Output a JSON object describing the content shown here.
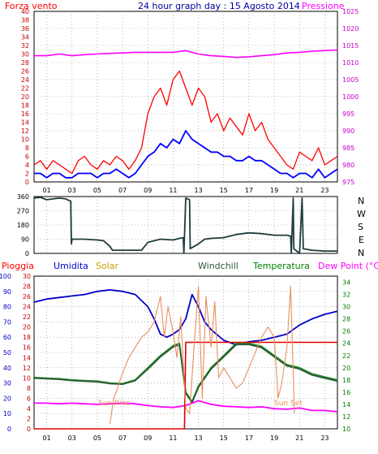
{
  "colors": {
    "wind_speed": "#ff0000",
    "wind_avg": "#0000ff",
    "pressure": "#ff00ff",
    "direction": "#1e3c3c",
    "rain": "#e00000",
    "humidity": "#0000cc",
    "solar": "#e8905a",
    "windchill": "#2a5a3a",
    "temperature": "#228b22",
    "dewpoint": "#ff00ff",
    "grid": "#888888",
    "axis_left_top": "#c80000",
    "axis_right_top": "#c800c8",
    "axis_left_bottom_rain": "#c80000",
    "axis_left_bottom_hum": "#0000c8",
    "axis_right_bottom": "#008000"
  },
  "chart_data": [
    {
      "id": "wind",
      "type": "line",
      "title": "24 hour graph day : 15 Agosto 2014",
      "left_label": "Forza vento",
      "right_label": "Pressione",
      "x_ticks": [
        "01",
        "03",
        "05",
        "07",
        "09",
        "11",
        "13",
        "15",
        "17",
        "19",
        "21",
        "23"
      ],
      "x_range": [
        0,
        24
      ],
      "y_left_range": [
        0,
        40
      ],
      "y_left_ticks": [
        "0",
        "2",
        "4",
        "6",
        "8",
        "10",
        "12",
        "14",
        "16",
        "18",
        "20",
        "22",
        "24",
        "26",
        "28",
        "30",
        "32",
        "34",
        "36",
        "38",
        "40"
      ],
      "y_right_range": [
        975,
        1025
      ],
      "y_right_ticks": [
        "975",
        "980",
        "985",
        "990",
        "995",
        "1000",
        "1005",
        "1010",
        "1015",
        "1020",
        "1025"
      ],
      "series": [
        {
          "key": "gust",
          "color_key": "wind_speed",
          "x": [
            0,
            0.5,
            1,
            1.5,
            2,
            2.5,
            3,
            3.5,
            4,
            4.5,
            5,
            5.5,
            6,
            6.5,
            7,
            7.5,
            8,
            8.5,
            9,
            9.5,
            10,
            10.5,
            11,
            11.5,
            12,
            12.5,
            13,
            13.5,
            14,
            14.5,
            15,
            15.5,
            16,
            16.5,
            17,
            17.5,
            18,
            18.5,
            19,
            19.5,
            20,
            20.5,
            21,
            21.5,
            22,
            22.5,
            23,
            23.5,
            24
          ],
          "y": [
            4,
            5,
            3,
            5,
            4,
            3,
            2,
            5,
            6,
            4,
            3,
            5,
            4,
            6,
            5,
            3,
            5,
            8,
            16,
            20,
            22,
            18,
            24,
            26,
            22,
            18,
            22,
            20,
            14,
            16,
            12,
            15,
            13,
            11,
            16,
            12,
            14,
            10,
            8,
            6,
            4,
            3,
            7,
            6,
            5,
            8,
            4,
            5,
            6
          ]
        },
        {
          "key": "average",
          "color_key": "wind_avg",
          "x": [
            0,
            0.5,
            1,
            1.5,
            2,
            2.5,
            3,
            3.5,
            4,
            4.5,
            5,
            5.5,
            6,
            6.5,
            7,
            7.5,
            8,
            8.5,
            9,
            9.5,
            10,
            10.5,
            11,
            11.5,
            12,
            12.5,
            13,
            13.5,
            14,
            14.5,
            15,
            15.5,
            16,
            16.5,
            17,
            17.5,
            18,
            18.5,
            19,
            19.5,
            20,
            20.5,
            21,
            21.5,
            22,
            22.5,
            23,
            23.5,
            24
          ],
          "y": [
            2,
            2,
            1,
            2,
            2,
            1,
            1,
            2,
            2,
            2,
            1,
            2,
            2,
            3,
            2,
            1,
            2,
            4,
            6,
            7,
            9,
            8,
            10,
            9,
            12,
            10,
            9,
            8,
            7,
            7,
            6,
            6,
            5,
            5,
            6,
            5,
            5,
            4,
            3,
            2,
            2,
            1,
            2,
            2,
            1,
            3,
            1,
            2,
            3
          ]
        },
        {
          "key": "pressure",
          "color_key": "pressure",
          "axis": "right",
          "x": [
            0,
            1,
            2,
            3,
            4,
            5,
            6,
            7,
            8,
            9,
            10,
            11,
            12,
            13,
            14,
            15,
            16,
            17,
            18,
            19,
            20,
            21,
            22,
            23,
            24
          ],
          "y": [
            1012,
            1012,
            1012.5,
            1012,
            1012.3,
            1012.5,
            1012.7,
            1012.8,
            1013,
            1013,
            1013,
            1013,
            1013.5,
            1012.5,
            1012,
            1011.8,
            1011.5,
            1011.7,
            1012,
            1012.3,
            1012.8,
            1013,
            1013.3,
            1013.5,
            1013.7
          ]
        }
      ]
    },
    {
      "id": "direction",
      "type": "line",
      "x_range": [
        0,
        24
      ],
      "y_range": [
        0,
        360
      ],
      "y_ticks": [
        "0",
        "90",
        "180",
        "270",
        "360"
      ],
      "compass": [
        "N",
        "W",
        "S",
        "E",
        "N"
      ],
      "series": [
        {
          "key": "direction",
          "color_key": "direction",
          "x": [
            0,
            0.5,
            1,
            1.5,
            2,
            2.5,
            2.9,
            2.95,
            3,
            4,
            5,
            5.5,
            6,
            6.2,
            7,
            8,
            8.5,
            9,
            10,
            11,
            11.5,
            11.8,
            11.85,
            12,
            12.3,
            12.35,
            13,
            13.5,
            14,
            15,
            15.5,
            16,
            17,
            18,
            19,
            20,
            20.3,
            20.35,
            20.5,
            20.55,
            21,
            21.2,
            21.3,
            22,
            23,
            24
          ],
          "y": [
            350,
            355,
            340,
            345,
            350,
            345,
            330,
            60,
            90,
            90,
            85,
            80,
            45,
            20,
            20,
            20,
            20,
            70,
            90,
            85,
            95,
            100,
            0,
            350,
            340,
            30,
            60,
            90,
            95,
            100,
            110,
            120,
            130,
            125,
            115,
            115,
            110,
            0,
            350,
            30,
            0,
            350,
            30,
            20,
            15,
            15
          ]
        }
      ]
    },
    {
      "id": "thermo",
      "type": "line",
      "labels": [
        "Pioggia",
        "Umidita",
        "Solar",
        "Windchill",
        "Temperatura",
        "Dew Point (°C)"
      ],
      "x_ticks": [
        "01",
        "03",
        "05",
        "07",
        "09",
        "11",
        "13",
        "15",
        "17",
        "19",
        "21",
        "23"
      ],
      "x_range": [
        0,
        24
      ],
      "y_hum_range": [
        0,
        100
      ],
      "y_hum_ticks": [
        "0",
        "10",
        "20",
        "30",
        "40",
        "50",
        "60",
        "70",
        "80",
        "90",
        "100"
      ],
      "y_rain_range": [
        0,
        30
      ],
      "y_rain_ticks": [
        "0",
        "2",
        "4",
        "6",
        "8",
        "10",
        "12",
        "14",
        "16",
        "18",
        "20",
        "22",
        "24",
        "26",
        "28",
        "30"
      ],
      "y_temp_range": [
        10,
        35
      ],
      "y_temp_ticks": [
        "10",
        "12",
        "14",
        "16",
        "18",
        "20",
        "22",
        "24",
        "26",
        "28",
        "30",
        "32",
        "34"
      ],
      "annotations": [
        "Sun Rise",
        "Sun Set"
      ],
      "series": [
        {
          "key": "humidity",
          "color_key": "humidity",
          "axis": "hum",
          "x": [
            0,
            1,
            2,
            3,
            4,
            5,
            6,
            7,
            8,
            9,
            9.5,
            10,
            10.5,
            11,
            11.5,
            12,
            12.5,
            13,
            13.5,
            14,
            15,
            16,
            17,
            18,
            19,
            20,
            21,
            22,
            23,
            24
          ],
          "y": [
            83,
            85,
            86,
            87,
            88,
            90,
            91,
            90,
            88,
            80,
            72,
            62,
            60,
            62,
            65,
            72,
            88,
            80,
            70,
            65,
            58,
            55,
            57,
            58,
            60,
            62,
            68,
            72,
            75,
            77
          ]
        },
        {
          "key": "temperature",
          "color_key": "temperature",
          "axis": "temp",
          "x": [
            0,
            1,
            2,
            3,
            4,
            5,
            6,
            7,
            8,
            9,
            10,
            11,
            11.5,
            12,
            12.5,
            13,
            14,
            15,
            16,
            17,
            18,
            19,
            20,
            21,
            22,
            23,
            24
          ],
          "y": [
            18.4,
            18.3,
            18.2,
            18,
            17.9,
            17.8,
            17.5,
            17.4,
            18,
            20,
            22,
            23.6,
            24,
            16,
            14.5,
            17,
            20,
            22,
            24,
            24,
            23.5,
            22,
            20.5,
            20,
            19,
            18.5,
            18
          ]
        },
        {
          "key": "windchill",
          "color_key": "windchill",
          "axis": "temp",
          "x": [
            0,
            1,
            2,
            3,
            4,
            5,
            6,
            7,
            8,
            9,
            10,
            11,
            11.5,
            12,
            12.5,
            13,
            14,
            15,
            16,
            17,
            18,
            19,
            20,
            21,
            22,
            23,
            24
          ],
          "y": [
            18.3,
            18.2,
            18.1,
            17.9,
            17.8,
            17.7,
            17.4,
            17.3,
            17.9,
            19.8,
            21.8,
            23.4,
            23.8,
            15.8,
            14.3,
            16.8,
            19.8,
            21.8,
            23.8,
            23.8,
            23.3,
            21.8,
            20.3,
            19.8,
            18.8,
            18.3,
            17.8
          ]
        },
        {
          "key": "dewpoint",
          "color_key": "dewpoint",
          "axis": "temp",
          "x": [
            0,
            1,
            2,
            3,
            4,
            5,
            6,
            7,
            8,
            9,
            10,
            11,
            12,
            13,
            14,
            15,
            16,
            17,
            18,
            19,
            20,
            21,
            22,
            23,
            24
          ],
          "y": [
            14.2,
            14.2,
            14.1,
            14.2,
            14.1,
            14,
            14.1,
            14.2,
            14.1,
            13.8,
            13.6,
            13.5,
            13.8,
            14.6,
            14,
            13.7,
            13.6,
            13.5,
            13.6,
            13.3,
            13.2,
            13.4,
            13,
            13,
            12.8
          ]
        },
        {
          "key": "rain",
          "color_key": "rain",
          "axis": "rain",
          "x": [
            0,
            11,
            11.9,
            12,
            13,
            20.5,
            21,
            24
          ],
          "y": [
            0,
            0,
            0,
            17,
            17,
            17,
            17,
            17
          ]
        },
        {
          "key": "solar",
          "color_key": "solar",
          "axis": "rain",
          "x": [
            6,
            6.3,
            6.6,
            7,
            7.5,
            8,
            8.5,
            9,
            9.5,
            10,
            10.3,
            10.6,
            11,
            11.3,
            11.6,
            12,
            12.3,
            12.6,
            13,
            13.3,
            13.6,
            14,
            14.3,
            14.6,
            15,
            15.5,
            16,
            16.5,
            17,
            17.5,
            18,
            18.5,
            19,
            19.3,
            19.6,
            20,
            20.3,
            20.6
          ],
          "y": [
            1,
            6,
            8,
            11,
            14,
            16,
            18,
            19,
            21,
            26,
            18,
            24,
            19,
            14,
            22,
            4,
            3,
            14,
            28,
            6,
            26,
            16,
            25,
            10,
            12,
            10,
            8,
            9,
            12,
            15,
            18,
            20,
            18,
            6,
            9,
            16,
            28,
            3
          ]
        }
      ]
    }
  ]
}
